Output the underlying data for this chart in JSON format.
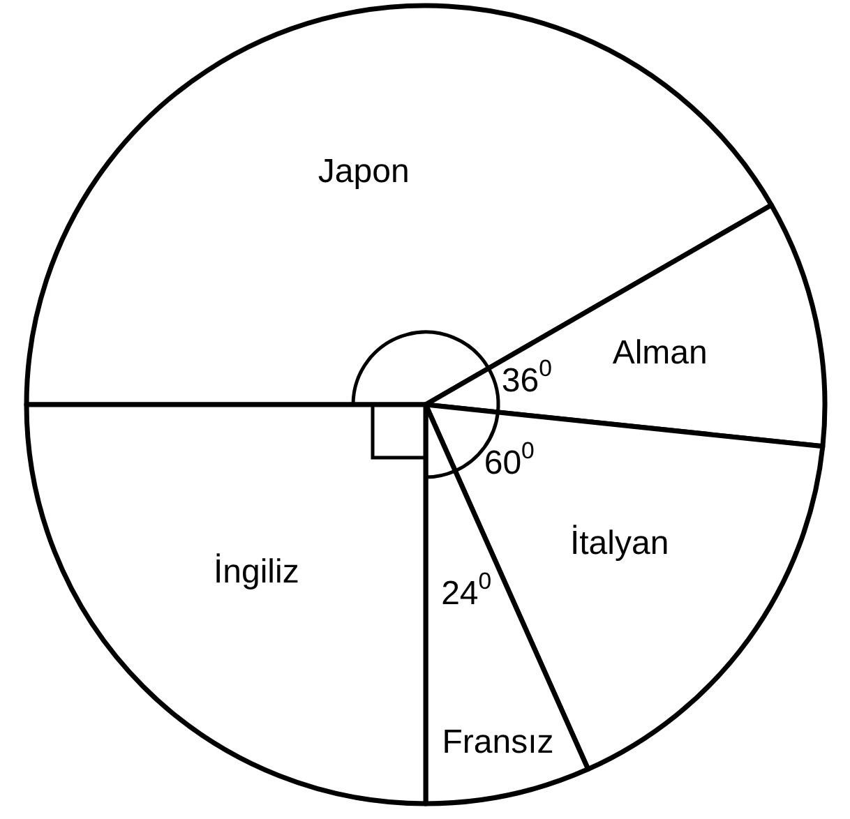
{
  "chart_data": {
    "type": "pie",
    "categories": [
      "Japon",
      "Alman",
      "İtalyan",
      "Fransız",
      "İngiliz"
    ],
    "values": [
      150,
      36,
      60,
      24,
      90
    ],
    "colors": [
      "#ffffff",
      "#ffffff",
      "#ffffff",
      "#ffffff",
      "#ffffff"
    ],
    "value_labels": [
      null,
      "36$^{0}$",
      "60$^{0}$",
      "24$^{0}$",
      null
    ]
  }
}
